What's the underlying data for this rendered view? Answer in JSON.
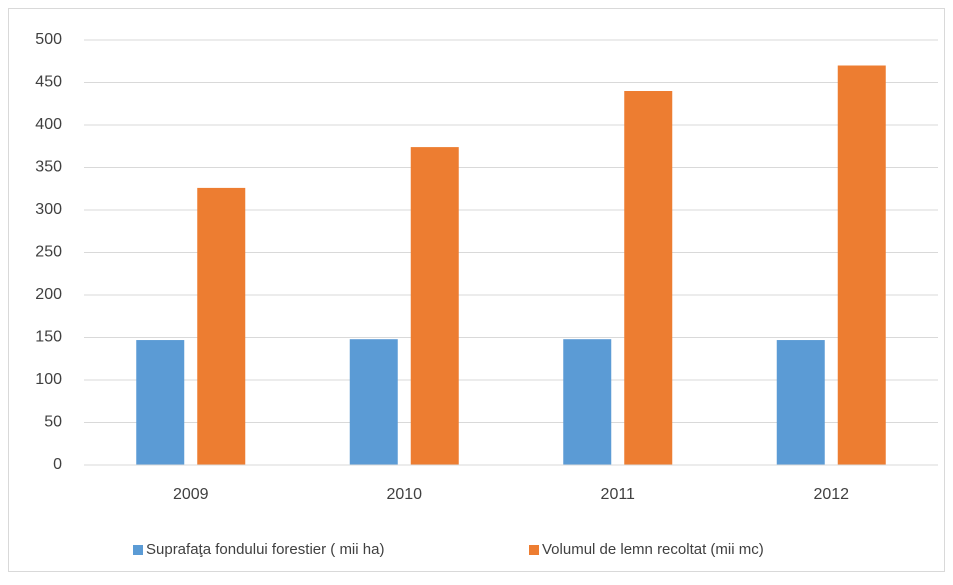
{
  "chart_data": {
    "type": "bar",
    "categories": [
      "2009",
      "2010",
      "2011",
      "2012"
    ],
    "series": [
      {
        "name": "Suprafaţa fondului forestier ( mii ha)",
        "color": "#5b9bd5",
        "values": [
          147,
          148,
          148,
          147
        ]
      },
      {
        "name": "Volumul de lemn recoltat (mii mc)",
        "color": "#ed7d31",
        "values": [
          326,
          374,
          440,
          470
        ]
      }
    ],
    "ylim": [
      0,
      500
    ],
    "yticks": [
      0,
      50,
      100,
      150,
      200,
      250,
      300,
      350,
      400,
      450,
      500
    ],
    "grid": true,
    "legend": "bottom"
  }
}
